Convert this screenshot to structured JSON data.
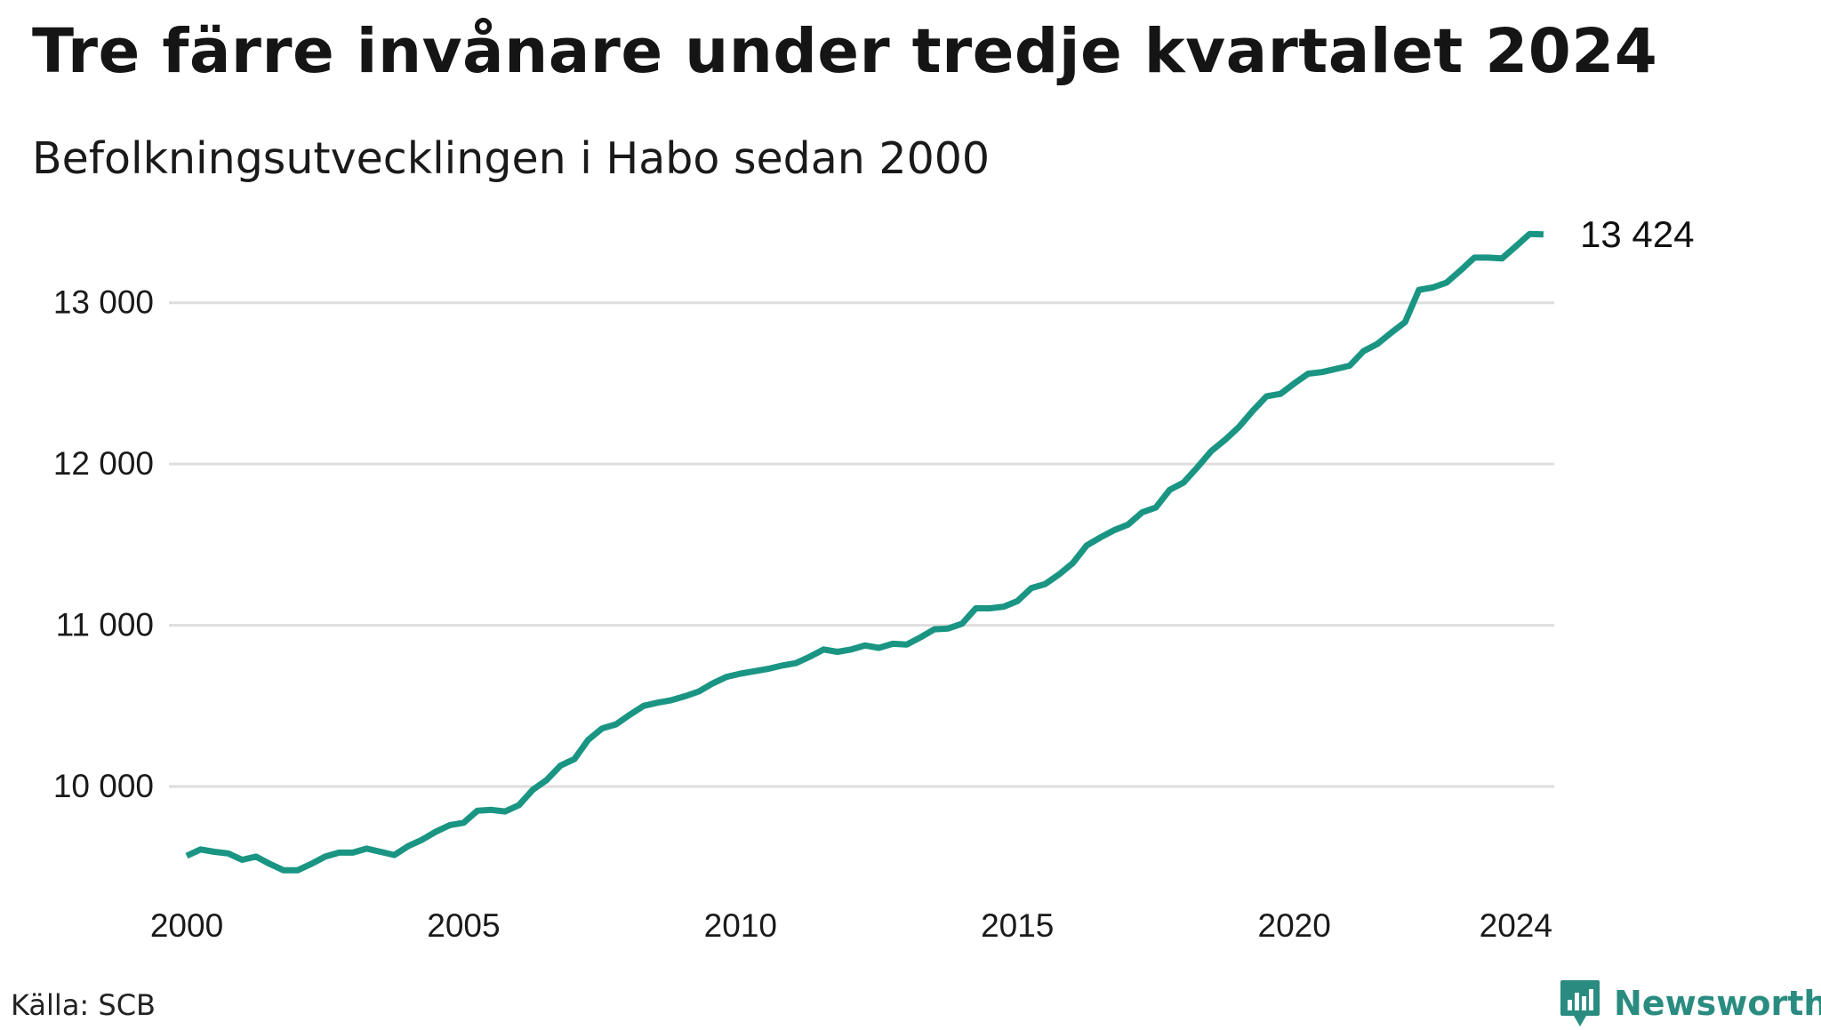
{
  "title": "Tre färre invånare under tredje kvartalet 2024",
  "subtitle": "Befolkningsutvecklingen i Habo sedan 2000",
  "source": "Källa: SCB",
  "brand": {
    "name": "Newsworthy",
    "icon": "newsworthy-logo-icon",
    "color": "#2a8c80"
  },
  "chart_data": {
    "type": "line",
    "title": "Tre färre invånare under tredje kvartalet 2024",
    "subtitle": "Befolkningsutvecklingen i Habo sedan 2000",
    "xlabel": "",
    "ylabel": "",
    "ylim": [
      9300,
      13500
    ],
    "xlim": [
      2000,
      2024.75
    ],
    "grid": true,
    "line_color": "#1a9583",
    "grid_color": "#dedede",
    "x_ticks": [
      2000,
      2005,
      2010,
      2015,
      2020,
      2024
    ],
    "x_tick_labels": [
      "2000",
      "2005",
      "2010",
      "2015",
      "2020",
      "2024"
    ],
    "y_ticks": [
      10000,
      11000,
      12000,
      13000
    ],
    "y_tick_labels": [
      "10 000",
      "11 000",
      "12 000",
      "13 000"
    ],
    "end_label": "13 424",
    "series": [
      {
        "x": [
          2000.0,
          2000.25,
          2000.5,
          2000.75,
          2001.0,
          2001.25,
          2001.5,
          2001.75,
          2002.0,
          2002.25,
          2002.5,
          2002.75,
          2003.0,
          2003.25,
          2003.5,
          2003.75,
          2004.0,
          2004.25,
          2004.5,
          2004.75,
          2005.0,
          2005.25,
          2005.5,
          2005.75,
          2006.0,
          2006.25,
          2006.5,
          2006.75,
          2007.0,
          2007.25,
          2007.5,
          2007.75,
          2008.0,
          2008.25,
          2008.5,
          2008.75,
          2009.0,
          2009.25,
          2009.5,
          2009.75,
          2010.0,
          2010.25,
          2010.5,
          2010.75,
          2011.0,
          2011.25,
          2011.5,
          2011.75,
          2012.0,
          2012.25,
          2012.5,
          2012.75,
          2013.0,
          2013.25,
          2013.5,
          2013.75,
          2014.0,
          2014.25,
          2014.5,
          2014.75,
          2015.0,
          2015.25,
          2015.5,
          2015.75,
          2016.0,
          2016.25,
          2016.5,
          2016.75,
          2017.0,
          2017.25,
          2017.5,
          2017.75,
          2018.0,
          2018.25,
          2018.5,
          2018.75,
          2019.0,
          2019.25,
          2019.5,
          2019.75,
          2020.0,
          2020.25,
          2020.5,
          2020.75,
          2021.0,
          2021.25,
          2021.5,
          2021.75,
          2022.0,
          2022.25,
          2022.5,
          2022.75,
          2023.0,
          2023.25,
          2023.5,
          2023.75,
          2024.0,
          2024.25,
          2024.5
        ],
        "y": [
          9570,
          9610,
          9595,
          9585,
          9545,
          9565,
          9520,
          9480,
          9480,
          9520,
          9565,
          9590,
          9590,
          9615,
          9595,
          9575,
          9630,
          9670,
          9720,
          9760,
          9775,
          9850,
          9855,
          9845,
          9885,
          9980,
          10040,
          10130,
          10170,
          10290,
          10360,
          10385,
          10445,
          10500,
          10520,
          10535,
          10560,
          10590,
          10640,
          10680,
          10700,
          10715,
          10730,
          10750,
          10765,
          10805,
          10850,
          10835,
          10850,
          10875,
          10860,
          10885,
          10880,
          10925,
          10975,
          10980,
          11010,
          11105,
          11105,
          11115,
          11150,
          11230,
          11255,
          11315,
          11385,
          11495,
          11545,
          11590,
          11625,
          11700,
          11730,
          11840,
          11885,
          11980,
          12080,
          12150,
          12230,
          12330,
          12420,
          12435,
          12500,
          12560,
          12570,
          12590,
          12610,
          12700,
          12745,
          12815,
          12880,
          13080,
          13095,
          13125,
          13200,
          13280,
          13280,
          13275,
          13350,
          13427,
          13424
        ]
      }
    ]
  }
}
